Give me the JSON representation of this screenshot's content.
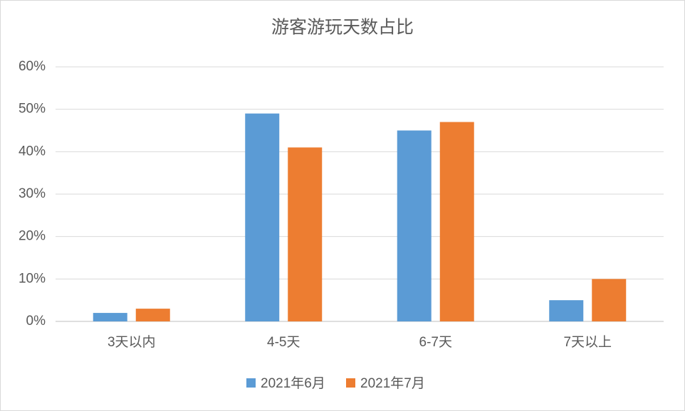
{
  "chart_data": {
    "type": "bar",
    "title": "游客游玩天数占比",
    "categories": [
      "3天以内",
      "4-5天",
      "6-7天",
      "7天以上"
    ],
    "series": [
      {
        "name": "2021年6月",
        "color": "#5b9bd5",
        "values": [
          2,
          49,
          45,
          5
        ]
      },
      {
        "name": "2021年7月",
        "color": "#ed7d31",
        "values": [
          3,
          41,
          47,
          10
        ]
      }
    ],
    "ylim": [
      0,
      60
    ],
    "yticks": [
      {
        "value": 0,
        "label": "0%"
      },
      {
        "value": 10,
        "label": "10%"
      },
      {
        "value": 20,
        "label": "20%"
      },
      {
        "value": 30,
        "label": "30%"
      },
      {
        "value": 40,
        "label": "40%"
      },
      {
        "value": 50,
        "label": "50%"
      },
      {
        "value": 60,
        "label": "60%"
      }
    ],
    "grid": true,
    "legend": "bottom"
  }
}
